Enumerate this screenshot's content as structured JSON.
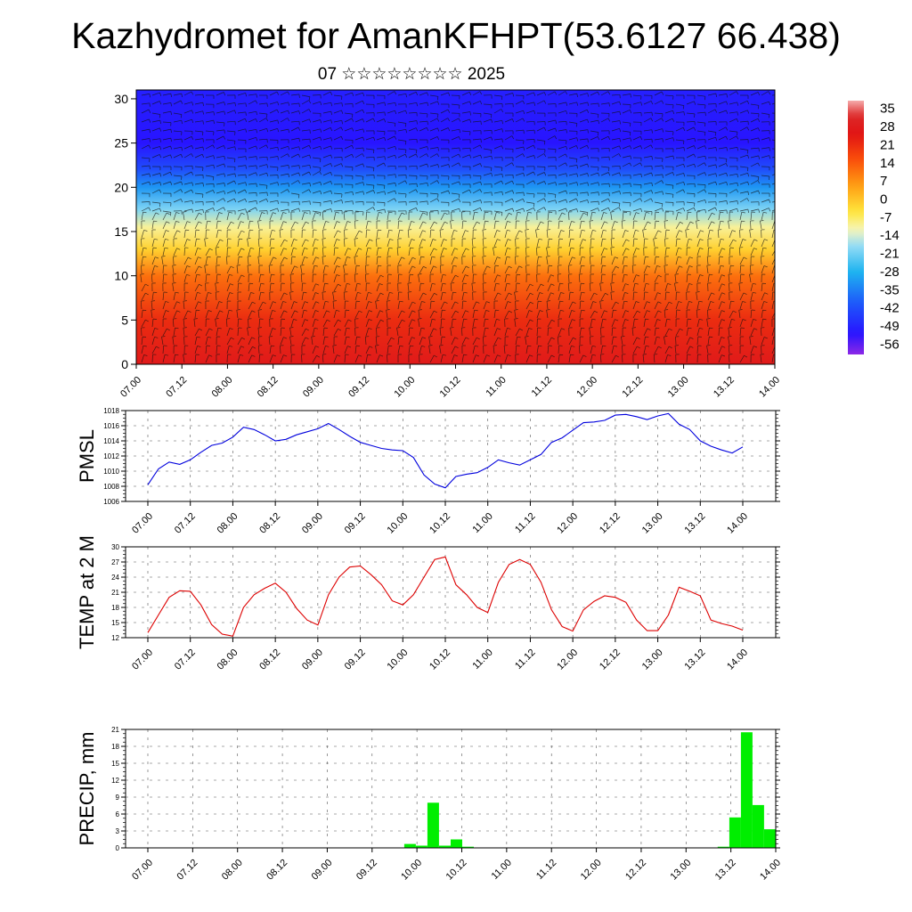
{
  "header": {
    "title": "Kazhydromet for AmanKFHPT(53.6127 66.438)",
    "subtitle": "07 ☆☆☆☆☆☆☆☆ 2025"
  },
  "chart_data": [
    {
      "type": "heatmap",
      "title": "",
      "x_ticks": [
        "07.00",
        "07.12",
        "08.00",
        "08.12",
        "09.00",
        "09.12",
        "10.00",
        "10.12",
        "11.00",
        "11.12",
        "12.00",
        "12.12",
        "13.00",
        "13.12",
        "14.00"
      ],
      "y_ticks": [
        "0",
        "5",
        "10",
        "15",
        "20",
        "25",
        "30"
      ],
      "ylim": [
        0,
        31
      ],
      "colorbar": {
        "labels": [
          "35",
          "28",
          "21",
          "14",
          "7",
          "0",
          "-7",
          "-14",
          "-21",
          "-28",
          "-35",
          "-42",
          "-49",
          "-56"
        ],
        "range": [
          -60,
          38
        ]
      },
      "profile_levels": [
        0,
        5,
        10,
        13,
        15.5,
        17.5,
        20,
        22,
        25,
        31
      ],
      "profile_values": [
        27,
        21,
        11,
        -2,
        -10,
        -20,
        -32,
        -42,
        -52,
        -50
      ],
      "overlay": "wind barbs"
    },
    {
      "type": "line",
      "ylabel": "PMSL",
      "x_ticks": [
        "07.00",
        "07.12",
        "08.00",
        "08.12",
        "09.00",
        "09.12",
        "10.00",
        "10.12",
        "11.00",
        "11.12",
        "12.00",
        "12.12",
        "13.00",
        "13.12",
        "14.00"
      ],
      "y_ticks": [
        "1006",
        "1008",
        "1010",
        "1012",
        "1014",
        "1016",
        "1018"
      ],
      "ylim": [
        1006,
        1018
      ],
      "series": [
        {
          "color": "#0000dd",
          "values": [
            1008.2,
            1010.3,
            1011.2,
            1010.9,
            1011.5,
            1012.5,
            1013.4,
            1013.7,
            1014.5,
            1015.8,
            1015.5,
            1014.8,
            1014.0,
            1014.2,
            1014.8,
            1015.2,
            1015.6,
            1016.3,
            1015.5,
            1014.6,
            1013.8,
            1013.4,
            1013.0,
            1012.8,
            1012.7,
            1011.8,
            1009.5,
            1008.3,
            1007.8,
            1009.3,
            1009.6,
            1009.8,
            1010.5,
            1011.5,
            1011.1,
            1010.8,
            1011.5,
            1012.2,
            1013.8,
            1014.4,
            1015.4,
            1016.4,
            1016.5,
            1016.7,
            1017.4,
            1017.5,
            1017.2,
            1016.8,
            1017.3,
            1017.6,
            1016.2,
            1015.5,
            1014.0,
            1013.3,
            1012.8,
            1012.4,
            1013.2
          ]
        }
      ]
    },
    {
      "type": "line",
      "ylabel": "TEMP at 2 M",
      "x_ticks": [
        "07.00",
        "07.12",
        "08.00",
        "08.12",
        "09.00",
        "09.12",
        "10.00",
        "10.12",
        "11.00",
        "11.12",
        "12.00",
        "12.12",
        "13.00",
        "13.12",
        "14.00"
      ],
      "y_ticks": [
        "12",
        "15",
        "18",
        "21",
        "24",
        "27",
        "30"
      ],
      "ylim": [
        12,
        30
      ],
      "series": [
        {
          "color": "#dd0000",
          "values": [
            13.0,
            16.5,
            20.0,
            21.3,
            21.2,
            18.5,
            14.6,
            12.7,
            12.3,
            18.0,
            20.5,
            21.8,
            22.8,
            21.0,
            17.8,
            15.5,
            14.5,
            20.5,
            24.0,
            26.0,
            26.2,
            24.5,
            22.5,
            19.3,
            18.5,
            20.5,
            24.0,
            27.5,
            28.0,
            22.5,
            20.5,
            18.0,
            17.0,
            23.0,
            26.5,
            27.5,
            26.5,
            23.0,
            17.5,
            14.2,
            13.3,
            17.5,
            19.2,
            20.3,
            20.0,
            19.0,
            15.5,
            13.4,
            13.4,
            16.5,
            22.0,
            21.2,
            20.3,
            15.5,
            14.8,
            14.3,
            13.5
          ]
        }
      ]
    },
    {
      "type": "bar",
      "ylabel": "PRECIP, mm",
      "x_ticks": [
        "07.00",
        "07.12",
        "08.00",
        "08.12",
        "09.00",
        "09.12",
        "10.00",
        "10.12",
        "11.00",
        "11.12",
        "12.00",
        "12.12",
        "13.00",
        "13.12",
        "14.00"
      ],
      "y_ticks": [
        "0",
        "3",
        "6",
        "9",
        "12",
        "15",
        "18",
        "21"
      ],
      "ylim": [
        0,
        21
      ],
      "bar_color": "#00ee00",
      "values": [
        0,
        0,
        0,
        0,
        0,
        0,
        0,
        0,
        0,
        0,
        0,
        0,
        0,
        0,
        0,
        0,
        0,
        0,
        0,
        0,
        0,
        0,
        0,
        0,
        0.7,
        0.4,
        8.0,
        0.4,
        1.5,
        0.2,
        0,
        0,
        0,
        0,
        0,
        0,
        0,
        0,
        0,
        0,
        0,
        0,
        0,
        0,
        0,
        0,
        0,
        0,
        0,
        0,
        0,
        0.2,
        5.4,
        20.5,
        7.6,
        3.3
      ]
    }
  ]
}
